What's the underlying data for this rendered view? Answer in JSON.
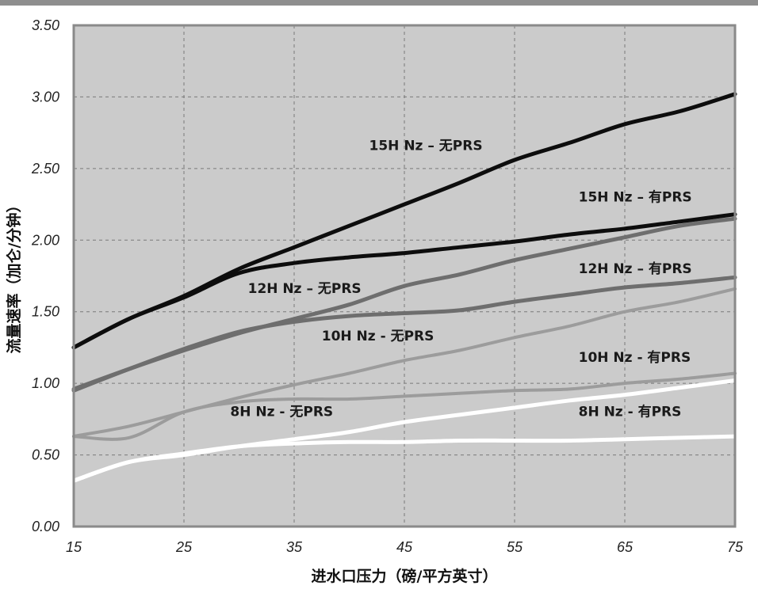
{
  "chart_data": {
    "type": "line",
    "title": "",
    "xlabel": "进水口压力（磅/平方英寸）",
    "ylabel": "流量速率（加仑/分钟）",
    "xlim": [
      15,
      75
    ],
    "ylim": [
      0,
      3.5
    ],
    "x_ticks": [
      "15",
      "25",
      "35",
      "45",
      "55",
      "65",
      "75"
    ],
    "y_ticks": [
      "0.00",
      "0.50",
      "1.00",
      "1.50",
      "2.00",
      "2.50",
      "3.00",
      "3.50"
    ],
    "grid": true,
    "series": [
      {
        "name": "15H Nz – 无PRS",
        "color": "#0d0d0d",
        "width": 5,
        "x": [
          15,
          20,
          25,
          30,
          35,
          40,
          45,
          50,
          55,
          60,
          65,
          70,
          75
        ],
        "y": [
          1.25,
          1.45,
          1.61,
          1.8,
          1.95,
          2.1,
          2.25,
          2.4,
          2.56,
          2.68,
          2.81,
          2.9,
          3.02
        ]
      },
      {
        "name": "15H Nz – 有PRS",
        "color": "#0d0d0d",
        "width": 5,
        "x": [
          15,
          20,
          25,
          30,
          35,
          40,
          45,
          50,
          55,
          60,
          65,
          70,
          75
        ],
        "y": [
          1.25,
          1.45,
          1.6,
          1.77,
          1.84,
          1.88,
          1.91,
          1.95,
          1.99,
          2.04,
          2.08,
          2.13,
          2.18
        ]
      },
      {
        "name": "12H Nz – 无PRS",
        "color": "#6e6e6e",
        "width": 5,
        "x": [
          15,
          20,
          25,
          30,
          35,
          40,
          45,
          50,
          55,
          60,
          65,
          70,
          75
        ],
        "y": [
          0.96,
          1.1,
          1.23,
          1.35,
          1.45,
          1.55,
          1.68,
          1.76,
          1.86,
          1.94,
          2.02,
          2.1,
          2.15
        ]
      },
      {
        "name": "12H Nz – 有PRS",
        "color": "#6e6e6e",
        "width": 5,
        "x": [
          15,
          20,
          25,
          30,
          35,
          40,
          45,
          50,
          55,
          60,
          65,
          70,
          75
        ],
        "y": [
          0.95,
          1.1,
          1.24,
          1.36,
          1.43,
          1.47,
          1.49,
          1.51,
          1.57,
          1.62,
          1.67,
          1.7,
          1.74
        ]
      },
      {
        "name": "10H Nz - 无PRS",
        "color": "#9c9c9c",
        "width": 4,
        "x": [
          15,
          20,
          25,
          30,
          35,
          40,
          45,
          50,
          55,
          60,
          65,
          70,
          75
        ],
        "y": [
          0.63,
          0.7,
          0.8,
          0.9,
          0.99,
          1.07,
          1.16,
          1.23,
          1.32,
          1.4,
          1.5,
          1.57,
          1.66
        ]
      },
      {
        "name": "10H Nz - 有PRS",
        "color": "#9c9c9c",
        "width": 4,
        "x": [
          15,
          20,
          25,
          30,
          35,
          40,
          45,
          50,
          55,
          60,
          65,
          70,
          75
        ],
        "y": [
          0.63,
          0.62,
          0.8,
          0.87,
          0.89,
          0.89,
          0.91,
          0.93,
          0.95,
          0.96,
          1.0,
          1.03,
          1.07
        ]
      },
      {
        "name": "8H Nz - 无PRS",
        "color": "#ffffff",
        "width": 5,
        "x": [
          15,
          20,
          25,
          30,
          35,
          40,
          45,
          50,
          55,
          60,
          65,
          70,
          75
        ],
        "y": [
          0.32,
          0.45,
          0.5,
          0.56,
          0.61,
          0.66,
          0.73,
          0.78,
          0.83,
          0.88,
          0.92,
          0.97,
          1.02
        ]
      },
      {
        "name": "8H Nz - 有PRS",
        "color": "#ffffff",
        "width": 5,
        "x": [
          15,
          20,
          25,
          30,
          35,
          40,
          45,
          50,
          55,
          60,
          65,
          70,
          75
        ],
        "y": [
          0.32,
          0.45,
          0.51,
          0.56,
          0.58,
          0.59,
          0.59,
          0.6,
          0.6,
          0.6,
          0.61,
          0.62,
          0.63
        ]
      }
    ],
    "annotations": [
      {
        "text": "15H Nz – 无PRS",
        "x": 41.8,
        "y": 2.63,
        "anchor": "start"
      },
      {
        "text": "15H Nz – 有PRS",
        "x": 60.8,
        "y": 2.27,
        "anchor": "start"
      },
      {
        "text": "12H Nz – 无PRS",
        "x": 30.8,
        "y": 1.63,
        "anchor": "start"
      },
      {
        "text": "12H Nz – 有PRS",
        "x": 60.8,
        "y": 1.77,
        "anchor": "start"
      },
      {
        "text": "10H Nz - 无PRS",
        "x": 37.5,
        "y": 1.3,
        "anchor": "start"
      },
      {
        "text": "10H Nz - 有PRS",
        "x": 60.8,
        "y": 1.15,
        "anchor": "start"
      },
      {
        "text": "8H Nz - 无PRS",
        "x": 29.2,
        "y": 0.77,
        "anchor": "start"
      },
      {
        "text": "8H Nz - 有PRS",
        "x": 60.8,
        "y": 0.77,
        "anchor": "start"
      }
    ]
  }
}
